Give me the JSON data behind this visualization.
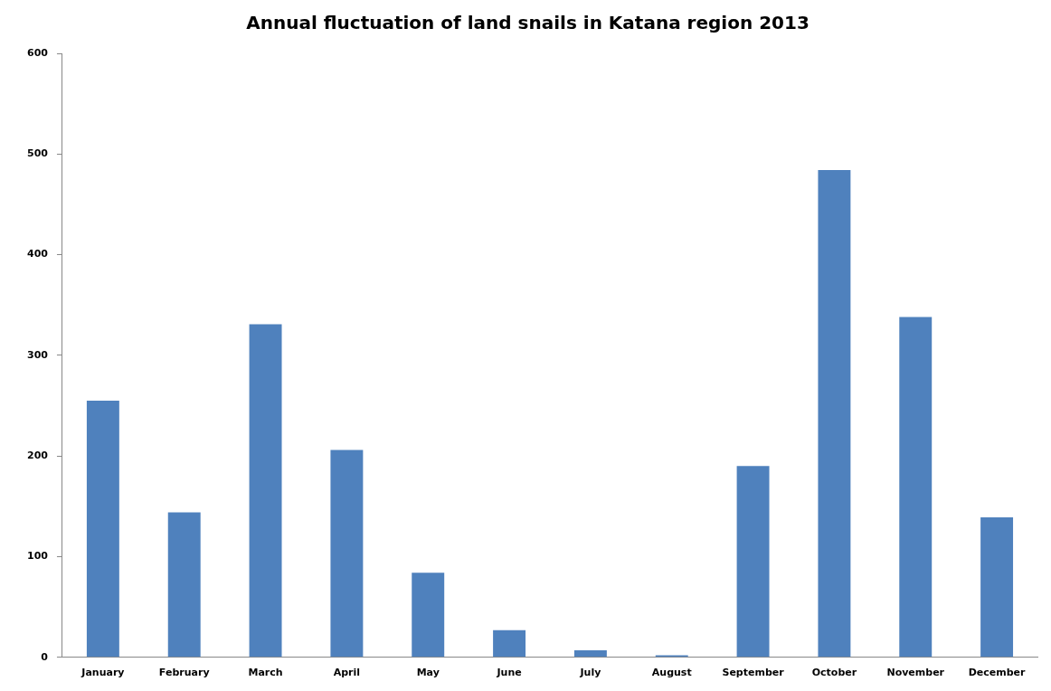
{
  "chart_data": {
    "type": "bar",
    "title": "Annual fluctuation of land snails in Katana region 2013",
    "categories": [
      "January",
      "February",
      "March",
      "April",
      "May",
      "June",
      "July",
      "August",
      "September",
      "October",
      "November",
      "December"
    ],
    "values": [
      255,
      144,
      331,
      206,
      84,
      27,
      7,
      2,
      190,
      484,
      338,
      139
    ],
    "color": "#4f81bd",
    "ylim": [
      0,
      600
    ],
    "yticks": [
      0,
      100,
      200,
      300,
      400,
      500,
      600
    ],
    "grid": false,
    "legend": false
  }
}
